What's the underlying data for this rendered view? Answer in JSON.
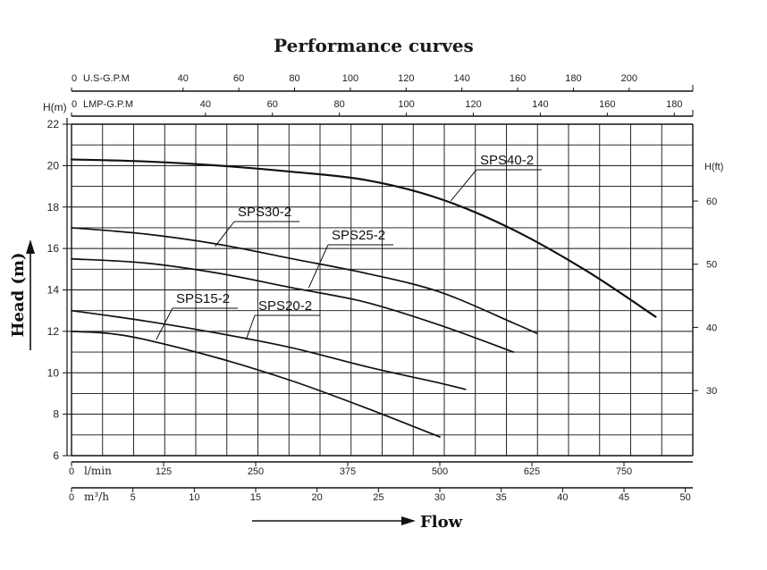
{
  "chart_data": {
    "type": "line",
    "title": "Performance curves",
    "ylabel": "Head (m)",
    "xlabel": "Flow",
    "ylim": [
      6,
      22
    ],
    "xlim": [
      0,
      800
    ],
    "grid": true,
    "y_ticks": [
      6,
      8,
      10,
      12,
      14,
      16,
      18,
      20,
      22
    ],
    "y_unit_label": "H(m)",
    "right_axis": {
      "label": "H(ft)",
      "ticks": [
        30,
        40,
        50,
        60
      ]
    },
    "axes_top": [
      {
        "name": "U.S-G.P.M",
        "zero": "0",
        "ticks": [
          40,
          60,
          80,
          100,
          120,
          140,
          160,
          180,
          200
        ],
        "per_x": 0.264172
      },
      {
        "name": "LMP-G.P.M",
        "zero": "0",
        "ticks": [
          40,
          60,
          80,
          100,
          120,
          140,
          160,
          180
        ],
        "per_x": 0.219969
      }
    ],
    "axes_bottom": [
      {
        "name": "l/min",
        "zero": "0",
        "ticks": [
          125,
          250,
          375,
          500,
          625,
          750
        ],
        "per_x": 1
      },
      {
        "name": "m³/h",
        "zero": "0",
        "ticks": [
          5,
          10,
          15,
          20,
          25,
          30,
          35,
          40,
          45,
          50
        ],
        "per_x": 0.06
      }
    ],
    "series": [
      {
        "name": "SPS40-2",
        "x": [
          0,
          100,
          200,
          300,
          400,
          500,
          600,
          700,
          793
        ],
        "y": [
          20.3,
          20.2,
          20.0,
          19.7,
          19.3,
          18.4,
          16.9,
          14.9,
          12.7
        ],
        "label_at": {
          "x": 515,
          "y": 18.3
        }
      },
      {
        "name": "SPS30-2",
        "x": [
          0,
          100,
          200,
          300,
          400,
          500,
          600,
          632
        ],
        "y": [
          17.0,
          16.7,
          16.2,
          15.5,
          14.8,
          13.9,
          12.4,
          11.9
        ],
        "label_at": {
          "x": 195,
          "y": 16.1
        }
      },
      {
        "name": "SPS25-2",
        "x": [
          0,
          100,
          200,
          300,
          400,
          500,
          600
        ],
        "y": [
          15.5,
          15.3,
          14.8,
          14.1,
          13.4,
          12.3,
          11.0
        ],
        "label_at": {
          "x": 322,
          "y": 14.1
        }
      },
      {
        "name": "SPS20-2",
        "x": [
          0,
          100,
          200,
          300,
          400,
          500,
          535
        ],
        "y": [
          13.0,
          12.5,
          11.9,
          11.2,
          10.3,
          9.5,
          9.2
        ],
        "label_at": {
          "x": 237,
          "y": 11.6
        }
      },
      {
        "name": "SPS15-2",
        "x": [
          0,
          50,
          100,
          200,
          300,
          400,
          500
        ],
        "y": [
          12.0,
          11.9,
          11.6,
          10.7,
          9.6,
          8.3,
          6.9
        ],
        "label_at": {
          "x": 115,
          "y": 11.6
        }
      }
    ]
  }
}
